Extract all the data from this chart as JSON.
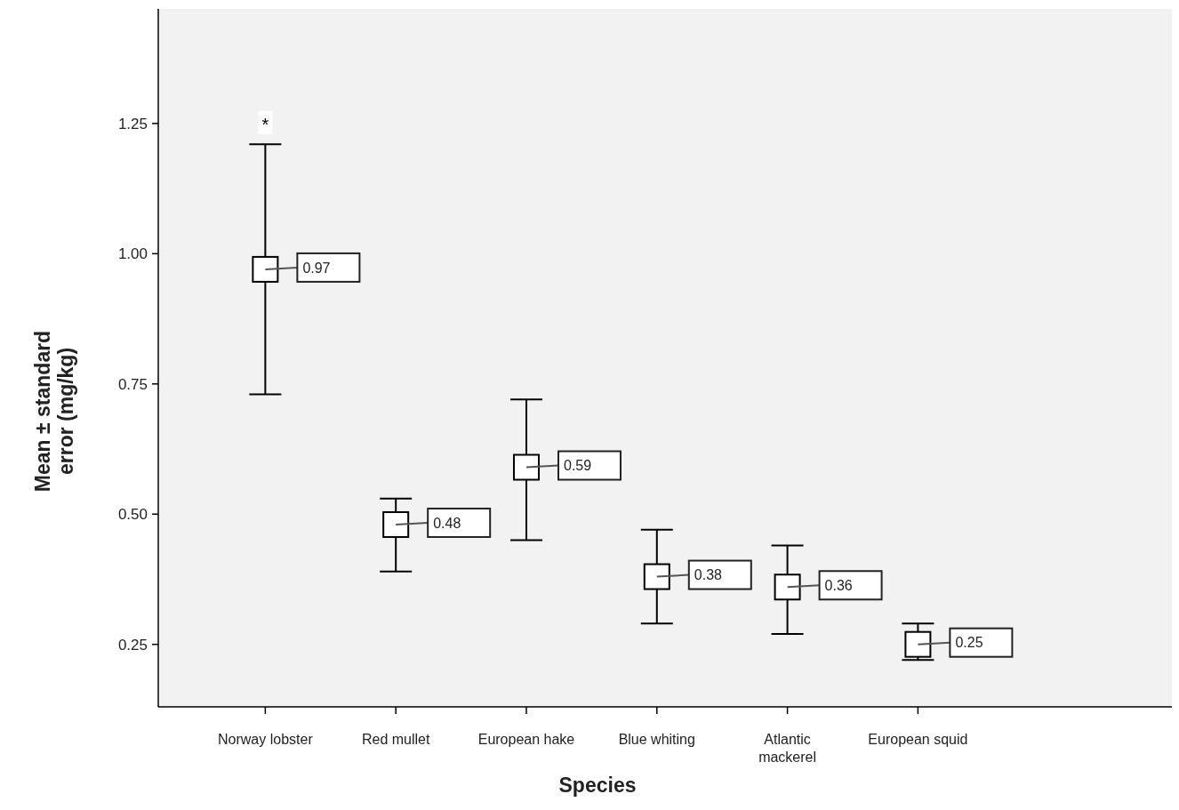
{
  "chart_data": {
    "type": "scatter",
    "xlabel": "Species",
    "ylabel": "Mean ± standard error (mg/kg)",
    "categories": [
      "Norway lobster",
      "Red mullet",
      "European hake",
      "Blue whiting",
      "Atlantic mackerel",
      "European squid"
    ],
    "values": [
      0.97,
      0.48,
      0.59,
      0.38,
      0.36,
      0.25
    ],
    "errors": [
      [
        0.73,
        1.21
      ],
      [
        0.39,
        0.53
      ],
      [
        0.45,
        0.72
      ],
      [
        0.29,
        0.47
      ],
      [
        0.27,
        0.44
      ],
      [
        0.22,
        0.29
      ]
    ],
    "color": "#000000",
    "marker": "square",
    "data_labels": true,
    "ylim": [
      0.13,
      1.47
    ],
    "yticks": [
      {
        "value": 0.25,
        "label": "0.25"
      },
      {
        "value": 0.5,
        "label": "0.50"
      },
      {
        "value": 0.75,
        "label": "0.75"
      },
      {
        "value": 1,
        "label": "1.00"
      },
      {
        "value": 1.25,
        "label": "1.25"
      }
    ],
    "annotations": [
      {
        "text": "*",
        "x": "Norway lobster",
        "y": 1.25
      }
    ],
    "grid": false
  }
}
